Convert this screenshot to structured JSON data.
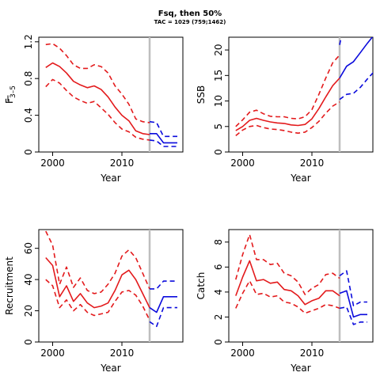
{
  "figure": {
    "title": "Fsq, then 50%",
    "subtitle": "TAC = 1029 (759;1462)"
  },
  "colors": {
    "historic": "#e31a1c",
    "projection": "#0a0adc",
    "reference_line": "#bebebe",
    "axis": "#000000"
  },
  "chart_data": [
    {
      "type": "line",
      "panel": "top-left",
      "ylabel": "F̅3–5",
      "ylabel_main": "F",
      "ylabel_sub": "3–5",
      "xlabel": "Year",
      "xlim": [
        1998,
        2018.8
      ],
      "ylim": [
        0,
        1.25
      ],
      "xticks": [
        2000,
        2010
      ],
      "yticks": [
        0,
        0.4,
        0.8,
        1.2
      ],
      "vline": 2014,
      "series": [
        {
          "role": "median",
          "style": "solid",
          "color": "historic",
          "x": [
            1999,
            2000,
            2001,
            2002,
            2003,
            2004,
            2005,
            2006,
            2007,
            2008,
            2009,
            2010,
            2011,
            2012,
            2013,
            2014
          ],
          "y": [
            0.92,
            0.97,
            0.93,
            0.86,
            0.77,
            0.73,
            0.7,
            0.72,
            0.68,
            0.6,
            0.49,
            0.4,
            0.34,
            0.23,
            0.2,
            0.19
          ]
        },
        {
          "role": "upper",
          "style": "dashed",
          "color": "historic",
          "x": [
            1999,
            2000,
            2001,
            2002,
            2003,
            2004,
            2005,
            2006,
            2007,
            2008,
            2009,
            2010,
            2011,
            2012,
            2013,
            2014
          ],
          "y": [
            1.17,
            1.18,
            1.13,
            1.05,
            0.95,
            0.91,
            0.91,
            0.95,
            0.93,
            0.86,
            0.72,
            0.63,
            0.52,
            0.36,
            0.33,
            0.32
          ]
        },
        {
          "role": "lower",
          "style": "dashed",
          "color": "historic",
          "x": [
            1999,
            2000,
            2001,
            2002,
            2003,
            2004,
            2005,
            2006,
            2007,
            2008,
            2009,
            2010,
            2011,
            2012,
            2013,
            2014
          ],
          "y": [
            0.71,
            0.79,
            0.75,
            0.67,
            0.6,
            0.56,
            0.53,
            0.55,
            0.48,
            0.41,
            0.32,
            0.25,
            0.22,
            0.16,
            0.14,
            0.13
          ]
        },
        {
          "role": "median",
          "style": "solid",
          "color": "projection",
          "x": [
            2014,
            2015,
            2016,
            2017,
            2018
          ],
          "y": [
            0.2,
            0.2,
            0.1,
            0.1,
            0.1
          ]
        },
        {
          "role": "upper",
          "style": "dashed",
          "color": "projection",
          "x": [
            2014,
            2015,
            2016,
            2017,
            2018
          ],
          "y": [
            0.33,
            0.32,
            0.17,
            0.17,
            0.17
          ]
        },
        {
          "role": "lower",
          "style": "dashed",
          "color": "projection",
          "x": [
            2014,
            2015,
            2016,
            2017,
            2018
          ],
          "y": [
            0.13,
            0.12,
            0.06,
            0.06,
            0.06
          ]
        }
      ]
    },
    {
      "type": "line",
      "panel": "top-right",
      "ylabel": "SSB",
      "xlabel": "Year",
      "xlim": [
        1998,
        2018.8
      ],
      "ylim": [
        0,
        22.5
      ],
      "xticks": [
        2000,
        2010
      ],
      "yticks": [
        0,
        5,
        10,
        15,
        20
      ],
      "vline": 2014,
      "series": [
        {
          "role": "median",
          "style": "solid",
          "color": "historic",
          "x": [
            1999,
            2000,
            2001,
            2002,
            2003,
            2004,
            2005,
            2006,
            2007,
            2008,
            2009,
            2010,
            2011,
            2012,
            2013,
            2014
          ],
          "y": [
            4.2,
            5.0,
            6.2,
            6.6,
            6.2,
            5.9,
            5.7,
            5.6,
            5.3,
            5.2,
            5.4,
            6.5,
            8.5,
            10.8,
            13.0,
            14.5
          ]
        },
        {
          "role": "upper",
          "style": "dashed",
          "color": "historic",
          "x": [
            1999,
            2000,
            2001,
            2002,
            2003,
            2004,
            2005,
            2006,
            2007,
            2008,
            2009,
            2010,
            2011,
            2012,
            2013,
            2014
          ],
          "y": [
            5.0,
            6.3,
            7.8,
            8.2,
            7.5,
            7.0,
            6.9,
            6.9,
            6.6,
            6.5,
            6.9,
            8.3,
            11.3,
            14.5,
            17.5,
            19.0
          ]
        },
        {
          "role": "lower",
          "style": "dashed",
          "color": "historic",
          "x": [
            1999,
            2000,
            2001,
            2002,
            2003,
            2004,
            2005,
            2006,
            2007,
            2008,
            2009,
            2010,
            2011,
            2012,
            2013,
            2014
          ],
          "y": [
            3.2,
            4.3,
            5.0,
            5.2,
            4.8,
            4.5,
            4.4,
            4.2,
            3.9,
            3.7,
            3.9,
            4.8,
            6.0,
            7.6,
            9.0,
            9.8
          ]
        },
        {
          "role": "median",
          "style": "solid",
          "color": "projection",
          "x": [
            2014,
            2015,
            2016,
            2017,
            2018,
            2019
          ],
          "y": [
            14.5,
            16.8,
            17.7,
            19.5,
            21.3,
            23.0
          ]
        },
        {
          "role": "upper",
          "style": "dashed",
          "color": "projection",
          "x": [
            2014,
            2014.3
          ],
          "y": [
            21.0,
            23.0
          ]
        },
        {
          "role": "lower",
          "style": "dashed",
          "color": "projection",
          "x": [
            2014,
            2015,
            2016,
            2017,
            2018,
            2019
          ],
          "y": [
            10.3,
            11.3,
            11.5,
            12.7,
            14.3,
            15.8
          ]
        }
      ]
    },
    {
      "type": "line",
      "panel": "bottom-left",
      "ylabel": "Recruitment",
      "xlabel": "Year",
      "xlim": [
        1998,
        2018.8
      ],
      "ylim": [
        0,
        72
      ],
      "xticks": [
        2000,
        2010
      ],
      "yticks": [
        0,
        20,
        40,
        60
      ],
      "vline": 2014,
      "series": [
        {
          "role": "median",
          "style": "solid",
          "color": "historic",
          "x": [
            1999,
            2000,
            2001,
            2002,
            2003,
            2004,
            2005,
            2006,
            2007,
            2008,
            2009,
            2010,
            2011,
            2012,
            2013,
            2014
          ],
          "y": [
            54,
            49,
            29,
            36,
            26,
            31,
            25,
            22,
            23,
            25,
            33,
            43,
            46,
            40,
            31,
            22
          ]
        },
        {
          "role": "upper",
          "style": "dashed",
          "color": "historic",
          "x": [
            1999,
            2000,
            2001,
            2002,
            2003,
            2004,
            2005,
            2006,
            2007,
            2008,
            2009,
            2010,
            2011,
            2012,
            2013,
            2014
          ],
          "y": [
            71,
            62,
            37,
            48,
            35,
            41,
            33,
            31,
            32,
            37,
            44,
            55,
            59,
            54,
            44,
            34
          ]
        },
        {
          "role": "lower",
          "style": "dashed",
          "color": "historic",
          "x": [
            1999,
            2000,
            2001,
            2002,
            2003,
            2004,
            2005,
            2006,
            2007,
            2008,
            2009,
            2010,
            2011,
            2012,
            2013,
            2014
          ],
          "y": [
            40,
            36,
            22,
            27,
            20,
            24,
            19,
            17,
            18,
            19,
            26,
            32,
            33,
            30,
            23,
            14
          ]
        },
        {
          "role": "median",
          "style": "solid",
          "color": "projection",
          "x": [
            2014,
            2015,
            2016,
            2017,
            2018
          ],
          "y": [
            22,
            19,
            29,
            29,
            29
          ]
        },
        {
          "role": "upper",
          "style": "dashed",
          "color": "projection",
          "x": [
            2014,
            2015,
            2016,
            2017,
            2018
          ],
          "y": [
            34,
            34,
            39,
            39,
            39
          ]
        },
        {
          "role": "lower",
          "style": "dashed",
          "color": "projection",
          "x": [
            2014,
            2015,
            2016,
            2017,
            2018
          ],
          "y": [
            13,
            10,
            22,
            22,
            22
          ]
        }
      ]
    },
    {
      "type": "line",
      "panel": "bottom-right",
      "ylabel": "Catch",
      "xlabel": "Year",
      "xlim": [
        1998,
        2018.8
      ],
      "ylim": [
        0,
        9
      ],
      "xticks": [
        2000,
        2010
      ],
      "yticks": [
        0,
        2,
        4,
        6,
        8
      ],
      "vline": 2014,
      "series": [
        {
          "role": "median",
          "style": "solid",
          "color": "historic",
          "x": [
            1999,
            2000,
            2001,
            2002,
            2003,
            2004,
            2005,
            2006,
            2007,
            2008,
            2009,
            2010,
            2011,
            2012,
            2013,
            2014
          ],
          "y": [
            3.7,
            5.2,
            6.5,
            4.9,
            5.0,
            4.7,
            4.8,
            4.2,
            4.1,
            3.7,
            3.0,
            3.3,
            3.5,
            4.1,
            4.1,
            3.7
          ]
        },
        {
          "role": "upper",
          "style": "dashed",
          "color": "historic",
          "x": [
            1999,
            2000,
            2001,
            2002,
            2003,
            2004,
            2005,
            2006,
            2007,
            2008,
            2009,
            2010,
            2011,
            2012,
            2013,
            2014
          ],
          "y": [
            5.0,
            7.0,
            8.6,
            6.6,
            6.6,
            6.2,
            6.3,
            5.5,
            5.3,
            4.8,
            3.8,
            4.3,
            4.6,
            5.4,
            5.5,
            5.1
          ]
        },
        {
          "role": "lower",
          "style": "dashed",
          "color": "historic",
          "x": [
            1999,
            2000,
            2001,
            2002,
            2003,
            2004,
            2005,
            2006,
            2007,
            2008,
            2009,
            2010,
            2011,
            2012,
            2013,
            2014
          ],
          "y": [
            2.7,
            3.9,
            4.9,
            3.8,
            3.9,
            3.6,
            3.7,
            3.2,
            3.1,
            2.8,
            2.3,
            2.5,
            2.7,
            3.0,
            2.9,
            2.7
          ]
        },
        {
          "role": "median",
          "style": "solid",
          "color": "projection",
          "x": [
            2014,
            2015,
            2016,
            2017,
            2018
          ],
          "y": [
            3.9,
            4.1,
            2.0,
            2.2,
            2.2
          ]
        },
        {
          "role": "upper",
          "style": "dashed",
          "color": "projection",
          "x": [
            2014,
            2015,
            2016,
            2017,
            2018
          ],
          "y": [
            5.3,
            5.7,
            2.9,
            3.2,
            3.2
          ]
        },
        {
          "role": "lower",
          "style": "dashed",
          "color": "projection",
          "x": [
            2014,
            2015,
            2016,
            2017,
            2018
          ],
          "y": [
            2.7,
            2.8,
            1.4,
            1.6,
            1.6
          ]
        }
      ]
    }
  ]
}
